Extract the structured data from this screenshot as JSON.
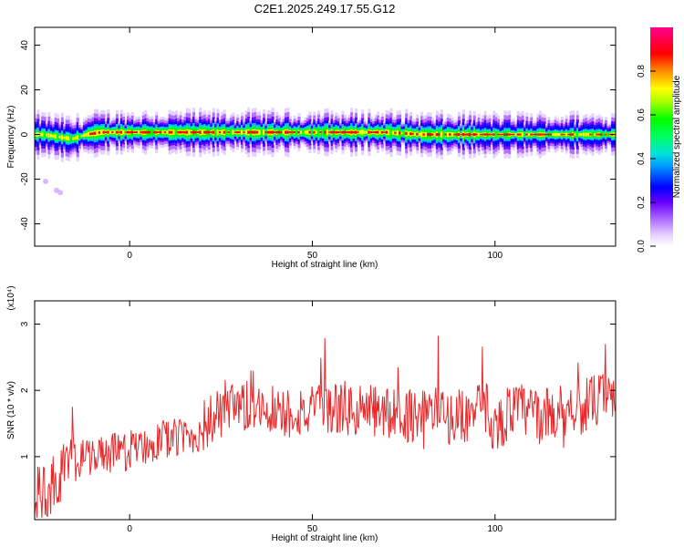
{
  "title": "C2E1.2025.249.17.55.G12",
  "chart_data": [
    {
      "type": "heatmap",
      "panel": "top",
      "xlabel": "Height of straight line (km)",
      "ylabel": "Frequency (Hz)",
      "xlim": [
        -26,
        133
      ],
      "ylim": [
        -50,
        48
      ],
      "x_ticks": [
        0,
        50,
        100
      ],
      "y_ticks": [
        -40,
        -20,
        0,
        20,
        40
      ],
      "ridge": {
        "description_values": "dominant frequency track, normalized amplitude peaks",
        "x": [
          -24,
          -20,
          -16,
          -12,
          -8,
          0,
          10,
          20,
          30,
          40,
          50,
          60,
          70,
          80,
          90,
          96,
          100,
          110,
          120,
          133
        ],
        "frequency_hz": [
          0,
          -1,
          -2,
          0,
          1,
          1,
          1,
          1,
          1,
          1,
          1,
          1,
          1,
          0,
          0,
          0,
          0,
          0,
          0,
          0
        ]
      },
      "outliers": [
        {
          "x": -23,
          "frequency_hz": -21
        },
        {
          "x": -20,
          "frequency_hz": -25
        },
        {
          "x": -19,
          "frequency_hz": -26
        }
      ],
      "colorbar": {
        "label": "Normalized spectral amplitude",
        "range": [
          0,
          1
        ],
        "ticks": [
          "0.0",
          "0.2",
          "0.4",
          "0.6",
          "0.8"
        ],
        "colors": [
          "#ffffff",
          "#c8a0ff",
          "#7a00ff",
          "#0000ff",
          "#00c0ff",
          "#00ff80",
          "#00ff00",
          "#a0ff00",
          "#ffff00",
          "#ff8000",
          "#ff0000",
          "#ff0080"
        ]
      }
    },
    {
      "type": "line",
      "panel": "bottom",
      "xlabel": "Height of straight line (km)",
      "ylabel": "SNR (10 * v/v)",
      "y_multiplier": "(x10⁴)",
      "xlim": [
        -26,
        133
      ],
      "ylim": [
        0.05,
        3.35
      ],
      "x_ticks": [
        0,
        50,
        100
      ],
      "y_ticks": [
        1,
        2,
        3
      ],
      "color": "#e8282a",
      "x": [
        -26,
        -22,
        -18,
        -14,
        -10,
        -6,
        -2,
        2,
        6,
        10,
        14,
        18,
        22,
        26,
        30,
        34,
        38,
        42,
        46,
        50,
        54,
        58,
        62,
        66,
        70,
        74,
        78,
        82,
        86,
        90,
        94,
        96,
        98,
        100,
        104,
        108,
        112,
        116,
        120,
        124,
        128,
        133
      ],
      "values": [
        0.4,
        0.5,
        0.8,
        0.95,
        1.0,
        1.05,
        1.05,
        1.15,
        1.2,
        1.25,
        1.3,
        1.3,
        1.55,
        1.65,
        1.7,
        1.75,
        1.75,
        1.65,
        1.7,
        1.65,
        1.7,
        1.75,
        1.65,
        1.7,
        1.65,
        1.6,
        1.65,
        1.7,
        1.6,
        1.6,
        1.65,
        1.7,
        1.75,
        1.4,
        1.7,
        1.7,
        1.6,
        1.65,
        1.75,
        1.75,
        1.85,
        1.85
      ]
    }
  ]
}
